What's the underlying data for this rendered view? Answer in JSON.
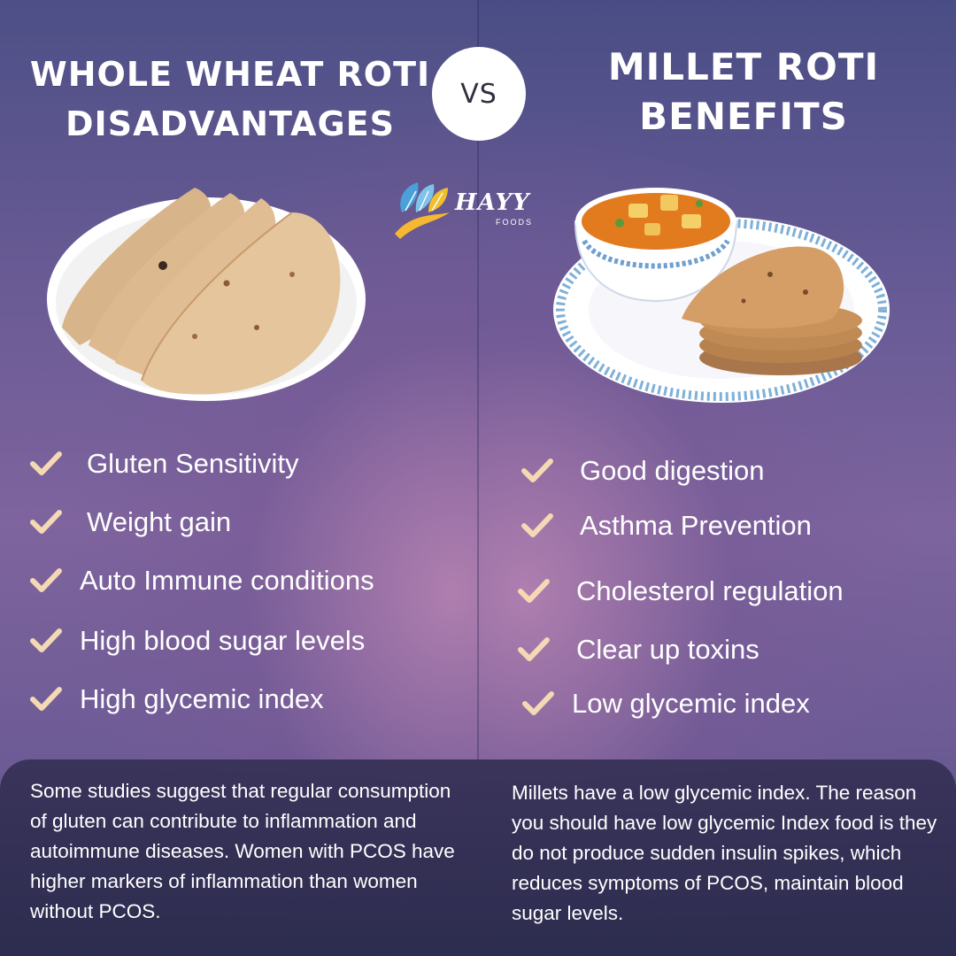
{
  "left": {
    "title": "WHOLE WHEAT ROTI DISADVANTAGES",
    "image": "stack-of-whole-wheat-rotis",
    "items": [
      "Gluten Sensitivity",
      "Weight gain",
      "Auto Immune conditions",
      "High blood sugar levels",
      "High glycemic index"
    ],
    "note": "Some studies suggest that regular consumption of gluten can contribute to inflammation and autoimmune diseases. Women with PCOS have higher markers of inflammation than women without PCOS."
  },
  "vs_label": "VS",
  "logo": {
    "text": "HAYY",
    "subtext": "FOODS"
  },
  "right": {
    "title": "MILLET ROTI BENEFITS",
    "image": "millet-rotis-with-paneer-curry",
    "items": [
      "Good digestion",
      "Asthma Prevention",
      "Cholesterol regulation",
      "Clear up toxins",
      "Low glycemic index"
    ],
    "note": "Millets have a low glycemic index. The reason you should have low glycemic Index food is they do not produce sudden insulin spikes, which reduces symptoms of PCOS, maintain blood sugar levels."
  },
  "colors": {
    "check": "#f4d9b4",
    "background_top": "#4d4f86",
    "background_glow": "#b280b0",
    "bottom_panel": "#38325a"
  },
  "icons": {
    "check": "check-icon"
  }
}
